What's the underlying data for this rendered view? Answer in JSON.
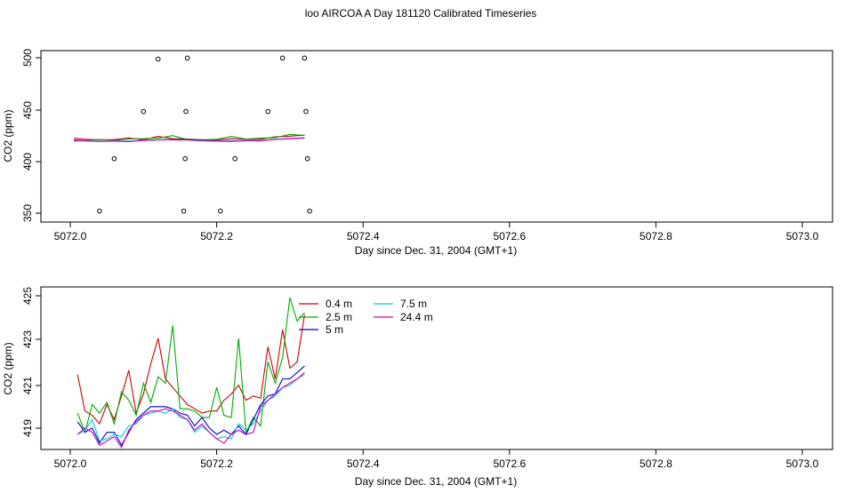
{
  "title": "loo AIRCOA A  Day 181120  Calibrated Timeseries",
  "chart_data": [
    {
      "type": "scatter",
      "xlabel": "Day since Dec. 31, 2004 (GMT+1)",
      "ylabel": "CO2 (ppm)",
      "xlim": [
        5072.0,
        5073.0
      ],
      "ylim": [
        350,
        500
      ],
      "x_ticks": [
        "5072.0",
        "5072.2",
        "5072.4",
        "5072.6",
        "5072.8",
        "5073.0"
      ],
      "y_ticks": [
        "350",
        "400",
        "450",
        "500"
      ],
      "grid": false,
      "points": [
        {
          "x": 5072.04,
          "y": 352
        },
        {
          "x": 5072.06,
          "y": 402
        },
        {
          "x": 5072.1,
          "y": 447
        },
        {
          "x": 5072.12,
          "y": 497
        },
        {
          "x": 5072.155,
          "y": 352
        },
        {
          "x": 5072.157,
          "y": 402
        },
        {
          "x": 5072.158,
          "y": 447
        },
        {
          "x": 5072.16,
          "y": 498
        },
        {
          "x": 5072.205,
          "y": 352
        },
        {
          "x": 5072.225,
          "y": 402
        },
        {
          "x": 5072.27,
          "y": 447
        },
        {
          "x": 5072.29,
          "y": 498
        },
        {
          "x": 5072.32,
          "y": 498
        },
        {
          "x": 5072.322,
          "y": 447
        },
        {
          "x": 5072.324,
          "y": 402
        },
        {
          "x": 5072.327,
          "y": 352
        }
      ],
      "series": [
        {
          "name": "0.4 m",
          "color": "#cc0000",
          "x": [
            5072.005,
            5072.02,
            5072.04,
            5072.06,
            5072.08,
            5072.1,
            5072.12,
            5072.14,
            5072.16,
            5072.18,
            5072.2,
            5072.22,
            5072.24,
            5072.26,
            5072.28,
            5072.3,
            5072.32
          ],
          "y": [
            421.5,
            420.5,
            420.0,
            420.2,
            421.8,
            420.0,
            423.2,
            421.0,
            420.8,
            420.1,
            420.0,
            421.0,
            420.5,
            420.5,
            422.8,
            423.5,
            424.5
          ]
        },
        {
          "name": "2.5 m",
          "color": "#00aa00",
          "x": [
            5072.005,
            5072.02,
            5072.04,
            5072.06,
            5072.08,
            5072.1,
            5072.12,
            5072.14,
            5072.16,
            5072.18,
            5072.2,
            5072.22,
            5072.24,
            5072.26,
            5072.28,
            5072.3,
            5072.32
          ],
          "y": [
            419.8,
            419.3,
            420.2,
            419.5,
            420.8,
            421.2,
            421.5,
            424.0,
            420.2,
            420.0,
            420.5,
            423.2,
            420.8,
            421.5,
            422.0,
            425.2,
            424.2
          ]
        },
        {
          "name": "5 m",
          "color": "#0000cc",
          "x": [
            5072.005,
            5072.02,
            5072.04,
            5072.06,
            5072.08,
            5072.1,
            5072.12,
            5072.14,
            5072.16,
            5072.18,
            5072.2,
            5072.22,
            5072.24,
            5072.26,
            5072.28,
            5072.3,
            5072.32
          ],
          "y": [
            419.5,
            419.0,
            418.5,
            419.0,
            418.4,
            419.5,
            420.0,
            420.2,
            420.0,
            419.3,
            419.0,
            418.9,
            419.2,
            419.0,
            420.5,
            421.2,
            422.0
          ]
        },
        {
          "name": "7.5 m",
          "color": "#00cccc",
          "x": [
            5072.005,
            5072.02,
            5072.04,
            5072.06,
            5072.08,
            5072.1,
            5072.12,
            5072.14,
            5072.16,
            5072.18,
            5072.2,
            5072.22,
            5072.24,
            5072.26,
            5072.28,
            5072.3,
            5072.32
          ],
          "y": [
            419.0,
            419.2,
            418.6,
            418.8,
            418.8,
            419.5,
            419.9,
            420.0,
            419.7,
            419.0,
            418.8,
            418.7,
            419.3,
            419.2,
            420.4,
            421.0,
            421.8
          ]
        },
        {
          "name": "24.4 m",
          "color": "#cc00cc",
          "x": [
            5072.005,
            5072.02,
            5072.04,
            5072.06,
            5072.08,
            5072.1,
            5072.12,
            5072.14,
            5072.16,
            5072.18,
            5072.2,
            5072.22,
            5072.24,
            5072.26,
            5072.28,
            5072.3,
            5072.32
          ],
          "y": [
            418.9,
            419.1,
            418.5,
            418.7,
            418.3,
            419.4,
            419.9,
            420.1,
            419.9,
            419.1,
            418.7,
            418.5,
            419.0,
            419.0,
            420.3,
            420.9,
            421.6
          ]
        }
      ]
    },
    {
      "type": "line",
      "xlabel": "Day since Dec. 31, 2004 (GMT+1)",
      "ylabel": "CO2 (ppm)",
      "xlim": [
        5072.0,
        5073.0
      ],
      "ylim": [
        418.2,
        425.8
      ],
      "x_ticks": [
        "5072.0",
        "5072.2",
        "5072.4",
        "5072.6",
        "5072.8",
        "5073.0"
      ],
      "y_ticks": [
        "419",
        "421",
        "423",
        "425"
      ],
      "grid": false,
      "legend_position": "top-left",
      "series": [
        {
          "name": "0.4 m",
          "color": "#cc0000",
          "x": [
            5072.01,
            5072.02,
            5072.03,
            5072.04,
            5072.05,
            5072.06,
            5072.07,
            5072.08,
            5072.09,
            5072.1,
            5072.11,
            5072.12,
            5072.13,
            5072.14,
            5072.15,
            5072.16,
            5072.17,
            5072.18,
            5072.19,
            5072.2,
            5072.21,
            5072.22,
            5072.23,
            5072.24,
            5072.25,
            5072.26,
            5072.27,
            5072.28,
            5072.29,
            5072.3,
            5072.31,
            5072.32
          ],
          "y": [
            421.7,
            420.0,
            419.8,
            419.4,
            420.3,
            419.6,
            420.7,
            421.9,
            419.9,
            420.8,
            422.2,
            423.4,
            421.5,
            421.1,
            420.7,
            420.3,
            420.1,
            419.9,
            420.0,
            420.0,
            420.5,
            420.8,
            421.2,
            420.5,
            420.7,
            420.6,
            423.0,
            421.5,
            423.8,
            422.0,
            422.3,
            424.5
          ]
        },
        {
          "name": "2.5 m",
          "color": "#00aa00",
          "x": [
            5072.01,
            5072.02,
            5072.03,
            5072.04,
            5072.05,
            5072.06,
            5072.07,
            5072.08,
            5072.09,
            5072.1,
            5072.11,
            5072.12,
            5072.13,
            5072.14,
            5072.15,
            5072.16,
            5072.17,
            5072.18,
            5072.19,
            5072.2,
            5072.21,
            5072.22,
            5072.23,
            5072.24,
            5072.25,
            5072.26,
            5072.27,
            5072.28,
            5072.29,
            5072.3,
            5072.31,
            5072.32
          ],
          "y": [
            419.9,
            419.0,
            420.3,
            419.9,
            420.4,
            419.4,
            420.9,
            420.5,
            419.8,
            421.3,
            420.4,
            421.6,
            421.3,
            424.0,
            420.1,
            420.1,
            420.0,
            419.7,
            419.7,
            421.1,
            419.8,
            419.7,
            423.4,
            419.0,
            419.7,
            419.3,
            422.3,
            421.3,
            422.5,
            425.3,
            424.2,
            424.6
          ]
        },
        {
          "name": "5 m",
          "color": "#0000cc",
          "x": [
            5072.01,
            5072.02,
            5072.03,
            5072.04,
            5072.05,
            5072.06,
            5072.07,
            5072.08,
            5072.09,
            5072.1,
            5072.11,
            5072.12,
            5072.13,
            5072.14,
            5072.15,
            5072.16,
            5072.17,
            5072.18,
            5072.19,
            5072.2,
            5072.21,
            5072.22,
            5072.23,
            5072.24,
            5072.25,
            5072.26,
            5072.27,
            5072.28,
            5072.29,
            5072.3,
            5072.31,
            5072.32
          ],
          "y": [
            419.5,
            419.0,
            419.2,
            418.5,
            419.0,
            419.0,
            418.4,
            419.0,
            419.6,
            419.9,
            420.2,
            420.2,
            420.2,
            420.1,
            419.9,
            419.8,
            419.3,
            419.7,
            419.2,
            418.9,
            419.1,
            418.9,
            419.3,
            418.9,
            419.6,
            420.3,
            420.7,
            420.8,
            421.5,
            421.5,
            421.8,
            422.1
          ]
        },
        {
          "name": "7.5 m",
          "color": "#00cccc",
          "x": [
            5072.01,
            5072.02,
            5072.03,
            5072.04,
            5072.05,
            5072.06,
            5072.07,
            5072.08,
            5072.09,
            5072.1,
            5072.11,
            5072.12,
            5072.13,
            5072.14,
            5072.15,
            5072.16,
            5072.17,
            5072.18,
            5072.19,
            5072.2,
            5072.21,
            5072.22,
            5072.23,
            5072.24,
            5072.25,
            5072.26,
            5072.27,
            5072.28,
            5072.29,
            5072.3,
            5072.31,
            5072.32
          ],
          "y": [
            418.9,
            419.1,
            419.6,
            418.6,
            418.7,
            418.9,
            418.8,
            419.3,
            419.4,
            419.8,
            419.9,
            420.0,
            419.9,
            420.1,
            419.7,
            419.6,
            419.0,
            419.3,
            419.0,
            418.7,
            418.8,
            418.7,
            419.4,
            419.1,
            419.4,
            420.0,
            420.5,
            420.7,
            421.1,
            421.2,
            421.5,
            421.7
          ]
        },
        {
          "name": "24.4 m",
          "color": "#cc00cc",
          "x": [
            5072.01,
            5072.02,
            5072.03,
            5072.04,
            5072.05,
            5072.06,
            5072.07,
            5072.08,
            5072.09,
            5072.1,
            5072.11,
            5072.12,
            5072.13,
            5072.14,
            5072.15,
            5072.16,
            5072.17,
            5072.18,
            5072.19,
            5072.2,
            5072.21,
            5072.22,
            5072.23,
            5072.24,
            5072.25,
            5072.26,
            5072.27,
            5072.28,
            5072.29,
            5072.3,
            5072.31,
            5072.32
          ],
          "y": [
            418.9,
            419.2,
            419.0,
            418.4,
            418.6,
            418.8,
            418.3,
            419.1,
            419.5,
            419.8,
            420.0,
            420.0,
            420.1,
            420.0,
            419.8,
            419.6,
            419.1,
            419.4,
            419.0,
            418.7,
            418.5,
            418.9,
            419.1,
            418.9,
            419.0,
            420.2,
            420.5,
            420.8,
            421.1,
            421.3,
            421.5,
            421.8
          ]
        }
      ]
    }
  ]
}
